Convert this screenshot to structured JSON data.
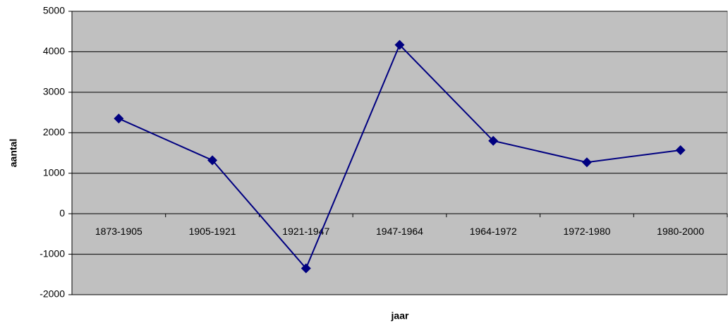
{
  "chart_data": {
    "type": "line",
    "x_label": "jaar",
    "y_label": "aantal",
    "categories": [
      "1873-1905",
      "1905-1921",
      "1921-1947",
      "1947-1964",
      "1964-1972",
      "1972-1980",
      "1980-2000"
    ],
    "series": [
      {
        "name": "aantal",
        "color": "#000080",
        "values": [
          2350,
          1320,
          -1350,
          4170,
          1800,
          1270,
          1570
        ]
      }
    ],
    "ylim": [
      -2000,
      5000
    ],
    "yticks": [
      -2000,
      -1000,
      0,
      1000,
      2000,
      3000,
      4000,
      5000
    ],
    "grid": true,
    "background": "#c0c0c0"
  }
}
